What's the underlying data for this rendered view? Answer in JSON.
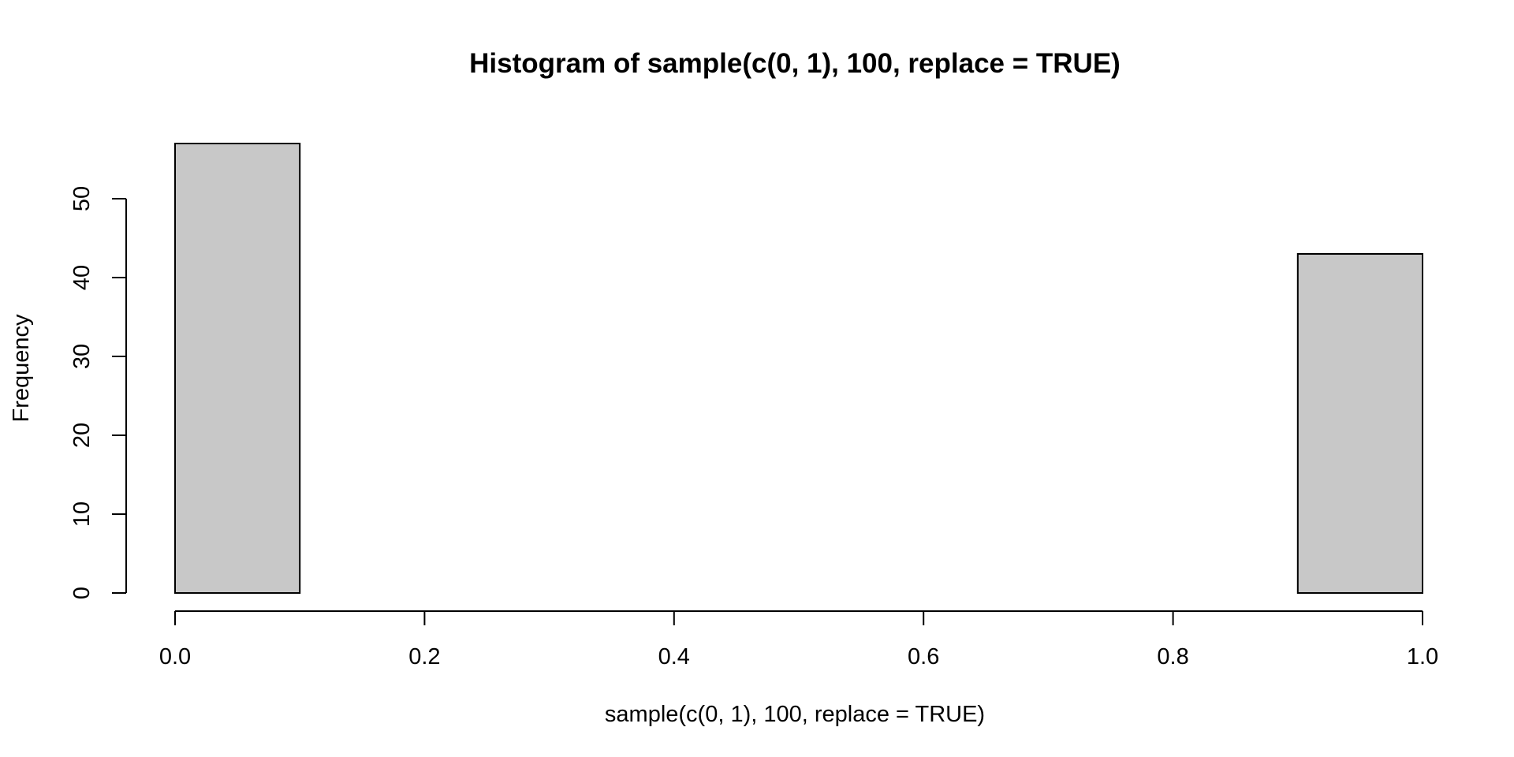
{
  "chart_data": {
    "type": "bar",
    "subtype": "histogram",
    "title": "Histogram of sample(c(0, 1), 100, replace = TRUE)",
    "xlabel": "sample(c(0, 1), 100, replace = TRUE)",
    "ylabel": "Frequency",
    "bins": [
      {
        "x0": 0.0,
        "x1": 0.1,
        "count": 57
      },
      {
        "x0": 0.1,
        "x1": 0.2,
        "count": 0
      },
      {
        "x0": 0.2,
        "x1": 0.3,
        "count": 0
      },
      {
        "x0": 0.3,
        "x1": 0.4,
        "count": 0
      },
      {
        "x0": 0.4,
        "x1": 0.5,
        "count": 0
      },
      {
        "x0": 0.5,
        "x1": 0.6,
        "count": 0
      },
      {
        "x0": 0.6,
        "x1": 0.7,
        "count": 0
      },
      {
        "x0": 0.7,
        "x1": 0.8,
        "count": 0
      },
      {
        "x0": 0.8,
        "x1": 0.9,
        "count": 0
      },
      {
        "x0": 0.9,
        "x1": 1.0,
        "count": 43
      }
    ],
    "xlim": [
      0,
      1
    ],
    "ylim": [
      0,
      57
    ],
    "xticks": [
      "0.0",
      "0.2",
      "0.4",
      "0.6",
      "0.8",
      "1.0"
    ],
    "yticks": [
      "0",
      "10",
      "20",
      "30",
      "40",
      "50"
    ],
    "bar_color": "#c8c8c8",
    "border_color": "#000000",
    "grid": false,
    "legend": false
  }
}
